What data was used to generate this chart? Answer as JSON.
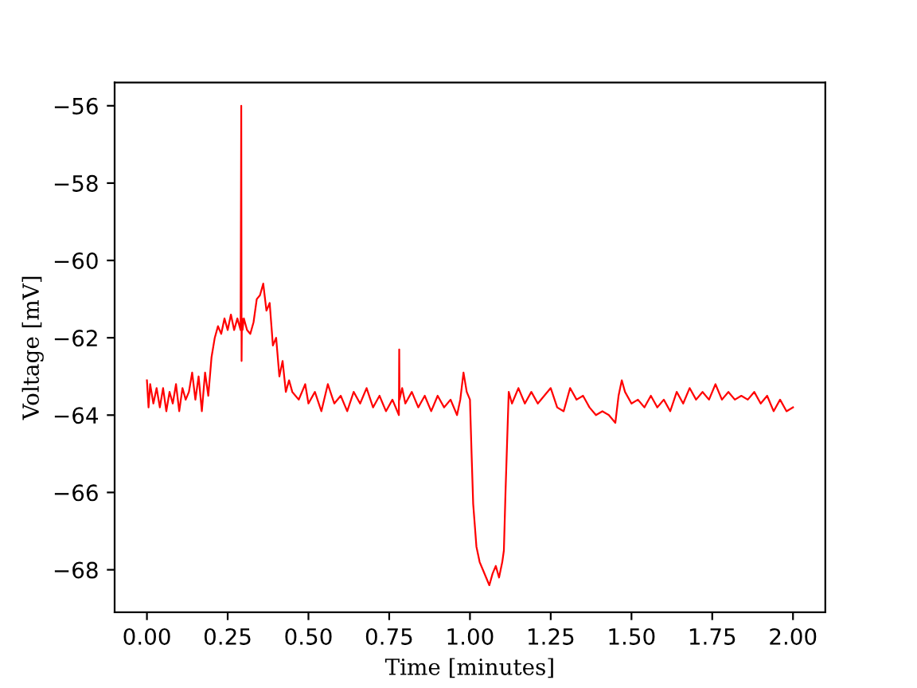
{
  "chart_data": {
    "type": "line",
    "xlabel": "Time [minutes]",
    "ylabel": "Voltage [mV]",
    "xlim": [
      -0.1,
      2.1
    ],
    "ylim": [
      -69.1,
      -55.4
    ],
    "xticks": [
      {
        "value": 0,
        "label": "0.00"
      },
      {
        "value": 0.25,
        "label": "0.25"
      },
      {
        "value": 0.5,
        "label": "0.50"
      },
      {
        "value": 0.75,
        "label": "0.75"
      },
      {
        "value": 1,
        "label": "1.00"
      },
      {
        "value": 1.25,
        "label": "1.25"
      },
      {
        "value": 1.5,
        "label": "1.50"
      },
      {
        "value": 1.75,
        "label": "1.75"
      },
      {
        "value": 2,
        "label": "2.00"
      }
    ],
    "yticks": [
      -68,
      -66,
      -64,
      -62,
      -60,
      -58,
      -56
    ],
    "grid": false,
    "legend": false,
    "marker": "none",
    "line_style": "solid",
    "series": [
      {
        "color": "#ff0000",
        "x": [
          0,
          0.005,
          0.01,
          0.02,
          0.03,
          0.04,
          0.05,
          0.06,
          0.07,
          0.08,
          0.09,
          0.1,
          0.11,
          0.12,
          0.13,
          0.14,
          0.15,
          0.16,
          0.17,
          0.18,
          0.19,
          0.2,
          0.21,
          0.22,
          0.23,
          0.24,
          0.25,
          0.26,
          0.27,
          0.28,
          0.29,
          0.292,
          0.293,
          0.294,
          0.296,
          0.3,
          0.31,
          0.32,
          0.33,
          0.34,
          0.35,
          0.36,
          0.37,
          0.38,
          0.39,
          0.4,
          0.41,
          0.42,
          0.43,
          0.44,
          0.45,
          0.47,
          0.49,
          0.5,
          0.52,
          0.54,
          0.56,
          0.58,
          0.6,
          0.62,
          0.64,
          0.66,
          0.68,
          0.7,
          0.72,
          0.74,
          0.76,
          0.78,
          0.781,
          0.782,
          0.79,
          0.8,
          0.82,
          0.84,
          0.86,
          0.88,
          0.9,
          0.92,
          0.94,
          0.96,
          0.97,
          0.98,
          0.99,
          1.0,
          1.005,
          1.01,
          1.02,
          1.03,
          1.04,
          1.05,
          1.06,
          1.07,
          1.08,
          1.09,
          1.1,
          1.105,
          1.11,
          1.115,
          1.12,
          1.13,
          1.15,
          1.17,
          1.19,
          1.21,
          1.23,
          1.25,
          1.27,
          1.29,
          1.31,
          1.33,
          1.35,
          1.37,
          1.39,
          1.41,
          1.43,
          1.45,
          1.46,
          1.47,
          1.48,
          1.5,
          1.52,
          1.54,
          1.56,
          1.58,
          1.6,
          1.62,
          1.64,
          1.66,
          1.68,
          1.7,
          1.72,
          1.74,
          1.76,
          1.78,
          1.8,
          1.82,
          1.84,
          1.86,
          1.88,
          1.9,
          1.92,
          1.94,
          1.96,
          1.98,
          2.0
        ],
        "values": [
          -63.1,
          -63.8,
          -63.2,
          -63.7,
          -63.3,
          -63.8,
          -63.3,
          -63.9,
          -63.4,
          -63.7,
          -63.2,
          -63.9,
          -63.3,
          -63.6,
          -63.4,
          -62.9,
          -63.6,
          -63.0,
          -63.9,
          -62.9,
          -63.5,
          -62.5,
          -62.0,
          -61.7,
          -61.9,
          -61.5,
          -61.8,
          -61.4,
          -61.8,
          -61.5,
          -61.8,
          -56.0,
          -62.6,
          -61.5,
          -61.8,
          -61.5,
          -61.8,
          -61.9,
          -61.6,
          -61.0,
          -60.9,
          -60.6,
          -61.3,
          -61.1,
          -62.2,
          -62.0,
          -63.0,
          -62.6,
          -63.4,
          -63.1,
          -63.4,
          -63.6,
          -63.2,
          -63.7,
          -63.4,
          -63.9,
          -63.2,
          -63.7,
          -63.5,
          -63.9,
          -63.4,
          -63.7,
          -63.3,
          -63.8,
          -63.5,
          -63.9,
          -63.6,
          -64.0,
          -62.3,
          -63.6,
          -63.3,
          -63.7,
          -63.4,
          -63.8,
          -63.5,
          -63.9,
          -63.5,
          -63.8,
          -63.6,
          -64.0,
          -63.6,
          -62.9,
          -63.4,
          -63.6,
          -65.0,
          -66.3,
          -67.4,
          -67.8,
          -68.0,
          -68.2,
          -68.4,
          -68.1,
          -67.9,
          -68.2,
          -67.8,
          -67.5,
          -66.0,
          -64.7,
          -63.4,
          -63.7,
          -63.3,
          -63.7,
          -63.4,
          -63.7,
          -63.5,
          -63.3,
          -63.8,
          -63.9,
          -63.3,
          -63.6,
          -63.5,
          -63.8,
          -64.0,
          -63.9,
          -64.0,
          -64.2,
          -63.5,
          -63.1,
          -63.4,
          -63.7,
          -63.6,
          -63.8,
          -63.5,
          -63.8,
          -63.6,
          -63.9,
          -63.4,
          -63.7,
          -63.3,
          -63.6,
          -63.4,
          -63.6,
          -63.2,
          -63.6,
          -63.4,
          -63.6,
          -63.5,
          -63.6,
          -63.4,
          -63.7,
          -63.5,
          -63.9,
          -63.6,
          -63.9,
          -63.8
        ]
      }
    ]
  }
}
